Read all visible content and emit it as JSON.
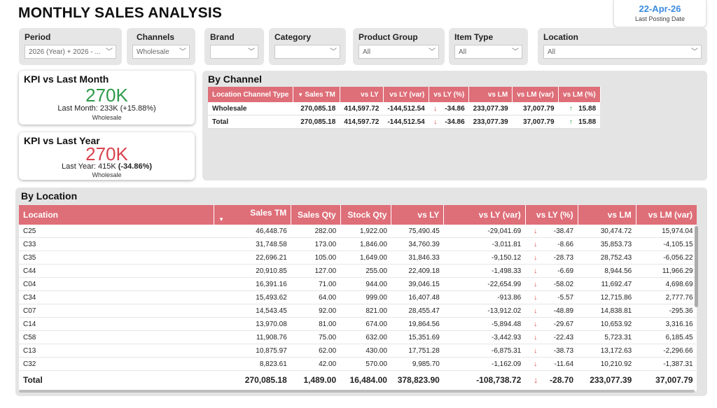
{
  "title": "MONTHLY SALES ANALYSIS",
  "posting": {
    "date": "22-Apr-26",
    "label": "Last Posting Date"
  },
  "filters": [
    {
      "label": "Period",
      "value": "2026 (Year) + 2026 - ..."
    },
    {
      "label": "Channels",
      "value": "Wholesale"
    },
    {
      "label": "Brand",
      "value": ""
    },
    {
      "label": "Category",
      "value": ""
    },
    {
      "label": "Product Group",
      "value": "All"
    },
    {
      "label": "Item Type",
      "value": "All"
    },
    {
      "label": "Location",
      "value": "All"
    }
  ],
  "kpi_month": {
    "title": "KPI vs Last Month",
    "value": "270K",
    "line": "Last Month: 233K (+15.88%)",
    "sub": "Wholesale",
    "color": "#2e9a4a"
  },
  "kpi_year": {
    "title": "KPI vs Last Year",
    "value": "270K",
    "line_prefix": "Last Year: 415K ",
    "line_bold": "(-34.86%)",
    "sub": "Wholesale",
    "color": "#d9424e"
  },
  "by_channel": {
    "title": "By Channel",
    "columns": [
      "Location Channel Type",
      "Sales TM",
      "vs LY",
      "vs LY (var)",
      "vs LY (%)",
      "vs LM",
      "vs LM (var)",
      "vs LM (%)"
    ],
    "rows": [
      {
        "name": "Wholesale",
        "sales_tm": "270,085.18",
        "vs_ly": "414,597.72",
        "vs_ly_var": "-144,512.54",
        "vs_ly_pct": "-34.86",
        "vs_lm": "233,077.39",
        "vs_lm_var": "37,007.79",
        "vs_lm_pct": "15.88"
      },
      {
        "name": "Total",
        "sales_tm": "270,085.18",
        "vs_ly": "414,597.72",
        "vs_ly_var": "-144,512.54",
        "vs_ly_pct": "-34.86",
        "vs_lm": "233,077.39",
        "vs_lm_var": "37,007.79",
        "vs_lm_pct": "15.88"
      }
    ]
  },
  "by_location": {
    "title": "By Location",
    "columns": [
      "Location",
      "Sales TM",
      "Sales Qty",
      "Stock Qty",
      "vs LY",
      "vs LY (var)",
      "vs LY (%)",
      "vs LM",
      "vs LM (var)"
    ],
    "rows": [
      {
        "loc": "C25",
        "sales_tm": "46,448.76",
        "qty": "282.00",
        "stock": "1,922.00",
        "vs_ly": "75,490.45",
        "ly_var": "-29,041.69",
        "ly_pct": "-38.47",
        "vs_lm": "30,474.72",
        "lm_var": "15,974.04",
        "lm_dir": "up"
      },
      {
        "loc": "C33",
        "sales_tm": "31,748.58",
        "qty": "173.00",
        "stock": "1,846.00",
        "vs_ly": "34,760.39",
        "ly_var": "-3,011.81",
        "ly_pct": "-8.66",
        "vs_lm": "35,853.73",
        "lm_var": "-4,105.15",
        "lm_dir": "down"
      },
      {
        "loc": "C35",
        "sales_tm": "22,696.21",
        "qty": "105.00",
        "stock": "1,649.00",
        "vs_ly": "31,846.33",
        "ly_var": "-9,150.12",
        "ly_pct": "-28.73",
        "vs_lm": "28,752.43",
        "lm_var": "-6,056.22",
        "lm_dir": "down"
      },
      {
        "loc": "C44",
        "sales_tm": "20,910.85",
        "qty": "127.00",
        "stock": "255.00",
        "vs_ly": "22,409.18",
        "ly_var": "-1,498.33",
        "ly_pct": "-6.69",
        "vs_lm": "8,944.56",
        "lm_var": "11,966.29",
        "lm_dir": "up"
      },
      {
        "loc": "C04",
        "sales_tm": "16,391.16",
        "qty": "71.00",
        "stock": "944.00",
        "vs_ly": "39,046.15",
        "ly_var": "-22,654.99",
        "ly_pct": "-58.02",
        "vs_lm": "11,692.47",
        "lm_var": "4,698.69",
        "lm_dir": "up"
      },
      {
        "loc": "C34",
        "sales_tm": "15,493.62",
        "qty": "64.00",
        "stock": "999.00",
        "vs_ly": "16,407.48",
        "ly_var": "-913.86",
        "ly_pct": "-5.57",
        "vs_lm": "12,715.86",
        "lm_var": "2,777.76",
        "lm_dir": "up"
      },
      {
        "loc": "C07",
        "sales_tm": "14,543.45",
        "qty": "92.00",
        "stock": "821.00",
        "vs_ly": "28,455.47",
        "ly_var": "-13,912.02",
        "ly_pct": "-48.89",
        "vs_lm": "14,838.81",
        "lm_var": "-295.36",
        "lm_dir": "down"
      },
      {
        "loc": "C14",
        "sales_tm": "13,970.08",
        "qty": "81.00",
        "stock": "674.00",
        "vs_ly": "19,864.56",
        "ly_var": "-5,894.48",
        "ly_pct": "-29.67",
        "vs_lm": "10,653.92",
        "lm_var": "3,316.16",
        "lm_dir": "up"
      },
      {
        "loc": "C58",
        "sales_tm": "11,908.76",
        "qty": "75.00",
        "stock": "632.00",
        "vs_ly": "15,351.69",
        "ly_var": "-3,442.93",
        "ly_pct": "-22.43",
        "vs_lm": "5,723.31",
        "lm_var": "6,185.45",
        "lm_dir": "up"
      },
      {
        "loc": "C13",
        "sales_tm": "10,875.97",
        "qty": "62.00",
        "stock": "430.00",
        "vs_ly": "17,751.28",
        "ly_var": "-6,875.31",
        "ly_pct": "-38.73",
        "vs_lm": "13,172.63",
        "lm_var": "-2,296.66",
        "lm_dir": "down"
      },
      {
        "loc": "C32",
        "sales_tm": "8,823.61",
        "qty": "42.00",
        "stock": "570.00",
        "vs_ly": "9,985.70",
        "ly_var": "-1,162.09",
        "ly_pct": "-11.64",
        "vs_lm": "10,210.92",
        "lm_var": "-1,387.31",
        "lm_dir": "down"
      }
    ],
    "total": {
      "loc": "Total",
      "sales_tm": "270,085.18",
      "qty": "1,489.00",
      "stock": "16,484.00",
      "vs_ly": "378,823.90",
      "ly_var": "-108,738.72",
      "ly_pct": "-28.70",
      "vs_lm": "233,077.39",
      "lm_var": "37,007.79",
      "lm_dir": "up"
    }
  },
  "icons": {
    "up": "↑",
    "down": "↓",
    "chevron": "chevron-down-icon",
    "sort": "sort-desc-icon"
  },
  "colors": {
    "header": "#de6e78",
    "up": "#2e9a4a",
    "down": "#e03b3b",
    "accent": "#3a8be0"
  }
}
